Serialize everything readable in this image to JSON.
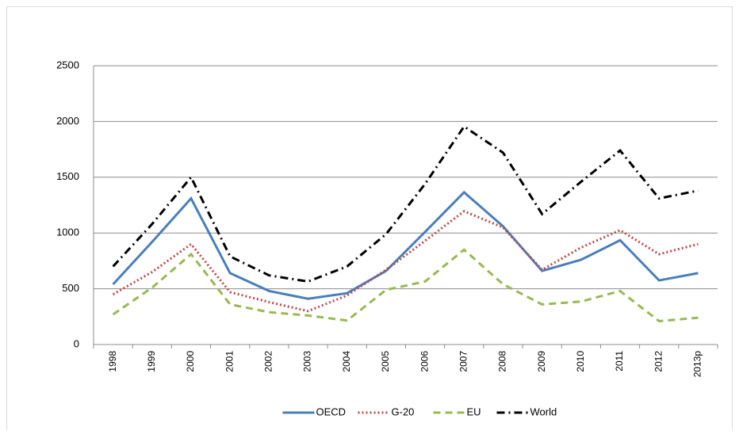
{
  "chart_data": {
    "type": "line",
    "categories": [
      "1998",
      "1999",
      "2000",
      "2001",
      "2002",
      "2003",
      "2004",
      "2005",
      "2006",
      "2007",
      "2008",
      "2009",
      "2010",
      "2011",
      "2012",
      "2013p"
    ],
    "series": [
      {
        "name": "OECD",
        "color": "#4a7ebb",
        "dash": "solid",
        "values": [
          540,
          920,
          1310,
          640,
          480,
          410,
          460,
          660,
          1010,
          1365,
          1060,
          660,
          760,
          935,
          575,
          640
        ]
      },
      {
        "name": "G-20",
        "color": "#be4b48",
        "dash": "dotted",
        "values": [
          450,
          650,
          900,
          470,
          380,
          300,
          440,
          670,
          930,
          1195,
          1050,
          670,
          870,
          1025,
          810,
          900
        ]
      },
      {
        "name": "EU",
        "color": "#98b954",
        "dash": "dashed",
        "values": [
          270,
          510,
          810,
          360,
          290,
          260,
          215,
          490,
          565,
          850,
          540,
          360,
          385,
          480,
          210,
          240
        ]
      },
      {
        "name": "World",
        "color": "#000000",
        "dash": "dashdot",
        "values": [
          700,
          1080,
          1500,
          790,
          620,
          565,
          700,
          990,
          1440,
          1955,
          1720,
          1170,
          1460,
          1740,
          1310,
          1380
        ]
      }
    ],
    "ylim": [
      0,
      2500
    ],
    "yticks": [
      0,
      500,
      1000,
      1500,
      2000,
      2500
    ],
    "grid": true,
    "legend": "bottom"
  }
}
